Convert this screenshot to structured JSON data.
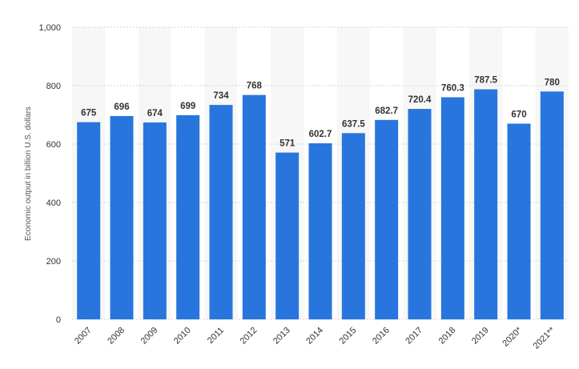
{
  "chart_data": {
    "type": "bar",
    "categories": [
      "2007",
      "2008",
      "2009",
      "2010",
      "2011",
      "2012",
      "2013",
      "2014",
      "2015",
      "2016",
      "2017",
      "2018",
      "2019",
      "2020*",
      "2021**"
    ],
    "values": [
      675,
      696,
      674,
      699,
      734,
      768,
      571,
      602.7,
      637.5,
      682.7,
      720.4,
      760.3,
      787.5,
      670,
      780
    ],
    "value_labels": [
      "675",
      "696",
      "674",
      "699",
      "734",
      "768",
      "571",
      "602.7",
      "637.5",
      "682.7",
      "720.4",
      "760.3",
      "787.5",
      "670",
      "780"
    ],
    "title": "",
    "xlabel": "",
    "ylabel": "Economic output in billion U.S. dollars",
    "ylim": [
      0,
      1000
    ],
    "yticks": [
      0,
      200,
      400,
      600,
      800,
      1000
    ],
    "ytick_labels": [
      "0",
      "200",
      "400",
      "600",
      "800",
      "1,000"
    ],
    "grid": true,
    "legend": "none",
    "colors": {
      "bar": "#2876dd",
      "band": "#f7f7f7",
      "grid": "#d6d6d6"
    }
  }
}
